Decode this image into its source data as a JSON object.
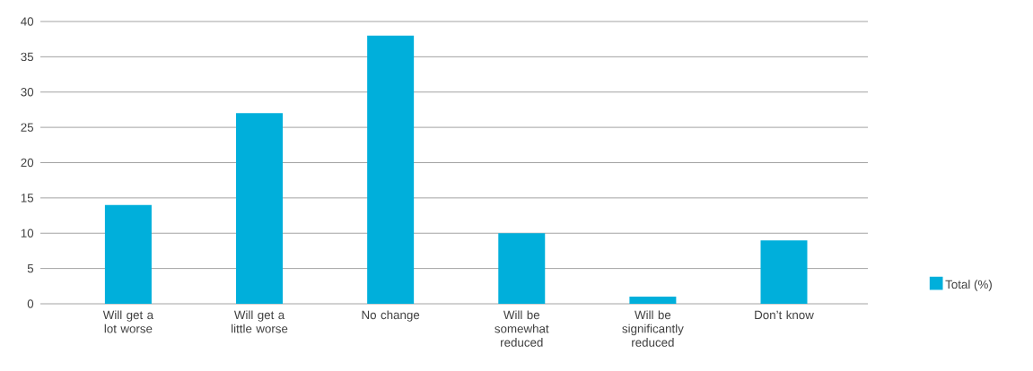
{
  "chart_data": {
    "type": "bar",
    "categories": [
      "Will get a lot worse",
      "Will get a little worse",
      "No change",
      "Will be somewhat reduced",
      "Will be significantly reduced",
      "Don’t know"
    ],
    "series": [
      {
        "name": "Total (%)",
        "color": "#00afdb",
        "values": [
          14,
          27,
          38,
          10,
          1,
          9
        ]
      }
    ],
    "ylim": [
      0,
      40
    ],
    "yticks": [
      0,
      5,
      10,
      15,
      20,
      25,
      30,
      35,
      40
    ],
    "grid": "y",
    "legend": "right"
  }
}
